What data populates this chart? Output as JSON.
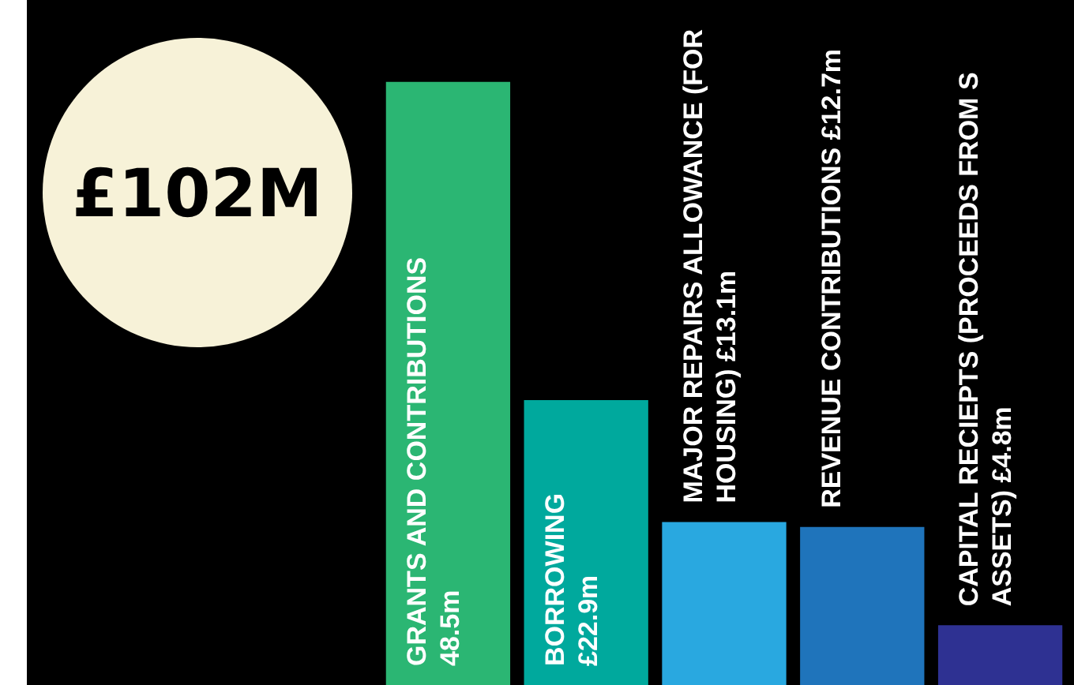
{
  "chart_data": {
    "type": "bar",
    "categories": [
      "GRANTS AND CONTRIBUTIONS",
      "BORROWING",
      "MAJOR REPAIRS ALLOWANCE (FOR HOUSING)",
      "REVENUE CONTRIBUTIONS",
      "CAPITAL RECIEPTS (PROCEEDS FROM S ASSETS)"
    ],
    "values": [
      48.5,
      22.9,
      13.1,
      12.7,
      4.8
    ],
    "value_labels": [
      "48.5m",
      "£22.9m",
      "£13.1m",
      "£12.7m",
      "£4.8m"
    ],
    "colors": [
      "#2bb673",
      "#00a99d",
      "#29a8e0",
      "#1f74bb",
      "#2e3192"
    ],
    "annotations": [
      "£102M"
    ]
  }
}
